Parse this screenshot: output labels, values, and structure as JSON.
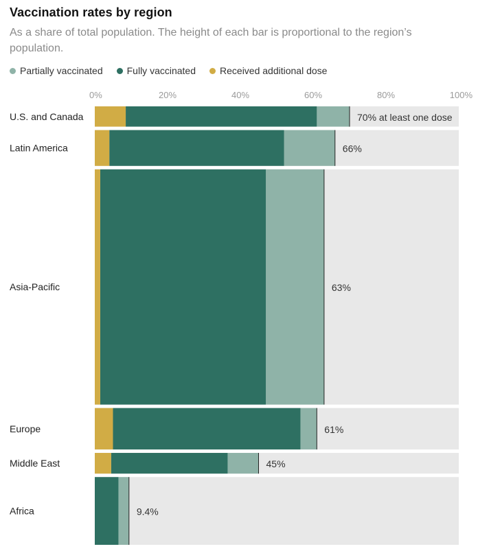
{
  "title": "Vaccination rates by region",
  "subtitle": "As a share of total population. The height of each bar is proportional to the region’s population.",
  "legend": [
    {
      "label": "Partially vaccinated",
      "color": "#8fb3a8",
      "icon": "legend-dot-partial"
    },
    {
      "label": "Fully vaccinated",
      "color": "#2e7062",
      "icon": "legend-dot-full"
    },
    {
      "label": "Received additional dose",
      "color": "#d1ac45",
      "icon": "legend-dot-additional"
    }
  ],
  "colors": {
    "partial": "#8fb3a8",
    "full": "#2e7062",
    "additional": "#d1ac45",
    "background": "#e8e8e8"
  },
  "chart_data": {
    "type": "bar",
    "orientation": "horizontal",
    "stacked": true,
    "variable_height": "population",
    "xlim": [
      0,
      100
    ],
    "xticks": [
      "0%",
      "20%",
      "40%",
      "60%",
      "80%",
      "100%"
    ],
    "series": [
      {
        "name": "Received additional dose",
        "key": "additional"
      },
      {
        "name": "Fully vaccinated",
        "key": "full"
      },
      {
        "name": "Partially vaccinated",
        "key": "partial"
      }
    ],
    "categories": [
      "U.S. and Canada",
      "Latin America",
      "Asia-Pacific",
      "Europe",
      "Middle East",
      "Africa"
    ],
    "rows": [
      {
        "region": "U.S. and Canada",
        "additional": 8.5,
        "full_total": 61,
        "at_least_one": 70,
        "label": "70% at least one dose",
        "population_share": 4.7
      },
      {
        "region": "Latin America",
        "additional": 4,
        "full_total": 52,
        "at_least_one": 66,
        "label": "66%",
        "population_share": 8.3
      },
      {
        "region": "Asia-Pacific",
        "additional": 1.5,
        "full_total": 47,
        "at_least_one": 63,
        "label": "63%",
        "population_share": 54.5
      },
      {
        "region": "Europe",
        "additional": 5,
        "full_total": 56.5,
        "at_least_one": 61,
        "label": "61%",
        "population_share": 9.6
      },
      {
        "region": "Middle East",
        "additional": 4.5,
        "full_total": 36.5,
        "at_least_one": 45,
        "label": "45%",
        "population_share": 4.8
      },
      {
        "region": "Africa",
        "additional": 0,
        "full_total": 6.5,
        "at_least_one": 9.4,
        "label": "9.4%",
        "population_share": 15.7
      }
    ]
  }
}
